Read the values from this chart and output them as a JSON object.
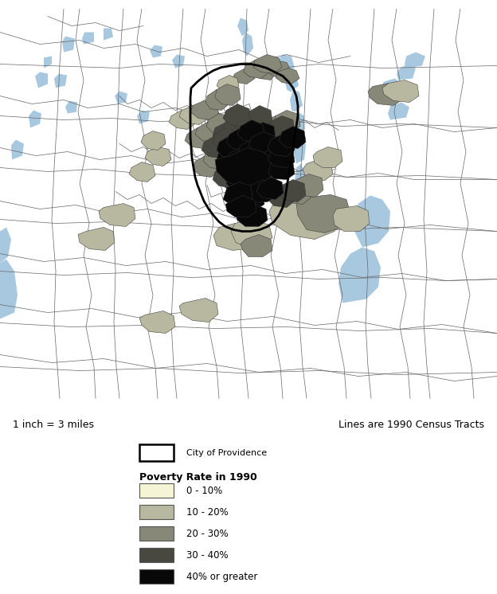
{
  "scale_text": "1 inch = 3 miles",
  "lines_text": "Lines are 1990 Census Tracts",
  "legend_title": "Poverty Rate in 1990",
  "city_label": "City of Providence",
  "legend_entries": [
    {
      "label": "0 - 10%",
      "color": "#f5f5d5"
    },
    {
      "label": "10 - 20%",
      "color": "#b8b8a0"
    },
    {
      "label": "20 - 30%",
      "color": "#888878"
    },
    {
      "label": "30 - 40%",
      "color": "#484840"
    },
    {
      "label": "40% or greater",
      "color": "#080808"
    }
  ],
  "map_bg": "#f5f5d5",
  "water_color": "#a8c8e0",
  "tract_line_color": "#666666",
  "city_border_color": "#000000",
  "figure_bg": "#ffffff"
}
